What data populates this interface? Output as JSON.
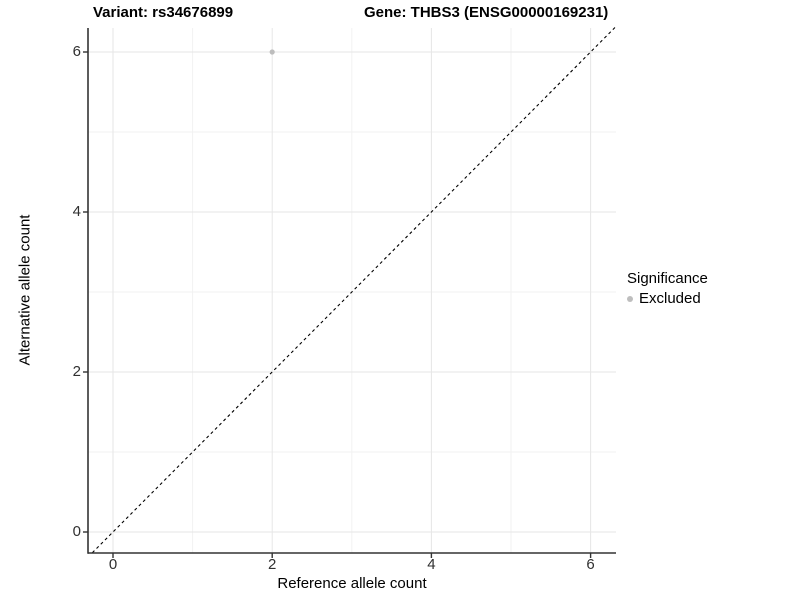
{
  "chart_data": {
    "type": "scatter",
    "title_left": "Variant: rs34676899",
    "title_right": "Gene: THBS3 (ENSG00000169231)",
    "xlabel": "Reference allele count",
    "ylabel": "Alternative allele count",
    "points": [
      {
        "x": 2,
        "y": 6,
        "significance": "Excluded"
      }
    ],
    "xticks": [
      "0",
      "2",
      "4",
      "6"
    ],
    "yticks": [
      "0",
      "2",
      "4",
      "6"
    ],
    "xtick_values": [
      0,
      2,
      4,
      6
    ],
    "ytick_values": [
      0,
      2,
      4,
      6
    ],
    "grid_values": [
      0,
      1,
      2,
      3,
      4,
      5,
      6
    ],
    "xlim": [
      -0.31,
      6.32
    ],
    "ylim": [
      -0.26,
      6.31
    ],
    "reference_line": {
      "type": "identity y=x",
      "style": "dashed",
      "color": "#000000"
    },
    "legend": {
      "position": "right",
      "title": "Significance",
      "entries": [
        {
          "label": "Excluded",
          "color": "#bebebe"
        }
      ]
    },
    "colors": {
      "point": "#bdbdbd",
      "grid_major": "#e6e6e6",
      "grid_minor": "#f2f2f2",
      "axis_line": "#333333",
      "panel_background": "#ffffff"
    },
    "grid": "on"
  }
}
